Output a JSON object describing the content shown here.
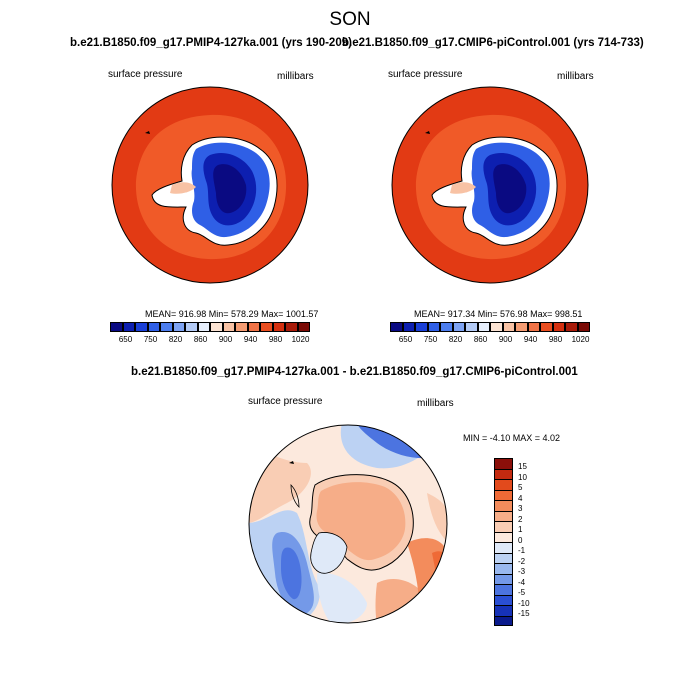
{
  "title": "SON",
  "panels": [
    {
      "title": "b.e21.B1850.f09_g17.PMIP4-127ka.001 (yrs 190-209)",
      "left_label": "surface pressure",
      "right_label": "millibars",
      "stats": "MEAN= 916.98  Min= 578.29  Max= 1001.57"
    },
    {
      "title": "b.e21.B1850.f09_g17.CMIP6-piControl.001 (yrs 714-733)",
      "left_label": "surface pressure",
      "right_label": "millibars",
      "stats": "MEAN= 917.34  Min= 576.98  Max= 998.51"
    }
  ],
  "colorbar": {
    "ticks": [
      "650",
      "750",
      "820",
      "860",
      "900",
      "940",
      "980",
      "1020"
    ],
    "colors": [
      "#0a0a82",
      "#0d1fb0",
      "#1a3fd6",
      "#2f5fe6",
      "#4d7eee",
      "#7ea3f2",
      "#b4cbf6",
      "#e6eefb",
      "#fbe3d3",
      "#f8c2a4",
      "#f49c73",
      "#ef7347",
      "#e94e20",
      "#d43010",
      "#a81b0a",
      "#7a0a05"
    ]
  },
  "diff": {
    "title": "b.e21.B1850.f09_g17.PMIP4-127ka.001 - b.e21.B1850.f09_g17.CMIP6-piControl.001",
    "left_label": "surface pressure",
    "right_label": "millibars",
    "stats": "MIN =  -4.10 MAX =   4.02",
    "colorbar_levels": [
      "15",
      "10",
      "5",
      "4",
      "3",
      "2",
      "1",
      "0",
      "-1",
      "-2",
      "-3",
      "-4",
      "-5",
      "-10",
      "-15"
    ],
    "colorbar_colors": [
      "#8b0f0a",
      "#c42a10",
      "#e24a1c",
      "#ef6a36",
      "#f38c5c",
      "#f6ad88",
      "#f9cdb4",
      "#fce9dd",
      "#dfe9f8",
      "#bcd2f3",
      "#99b8ee",
      "#7499e8",
      "#4c74e0",
      "#2a4fd4",
      "#1632b8",
      "#0a1a8c"
    ]
  },
  "colors": {
    "ocean_outer": "#e23a14",
    "ocean_ring": "#f05a28",
    "continent_low": "#0a1a8c"
  }
}
